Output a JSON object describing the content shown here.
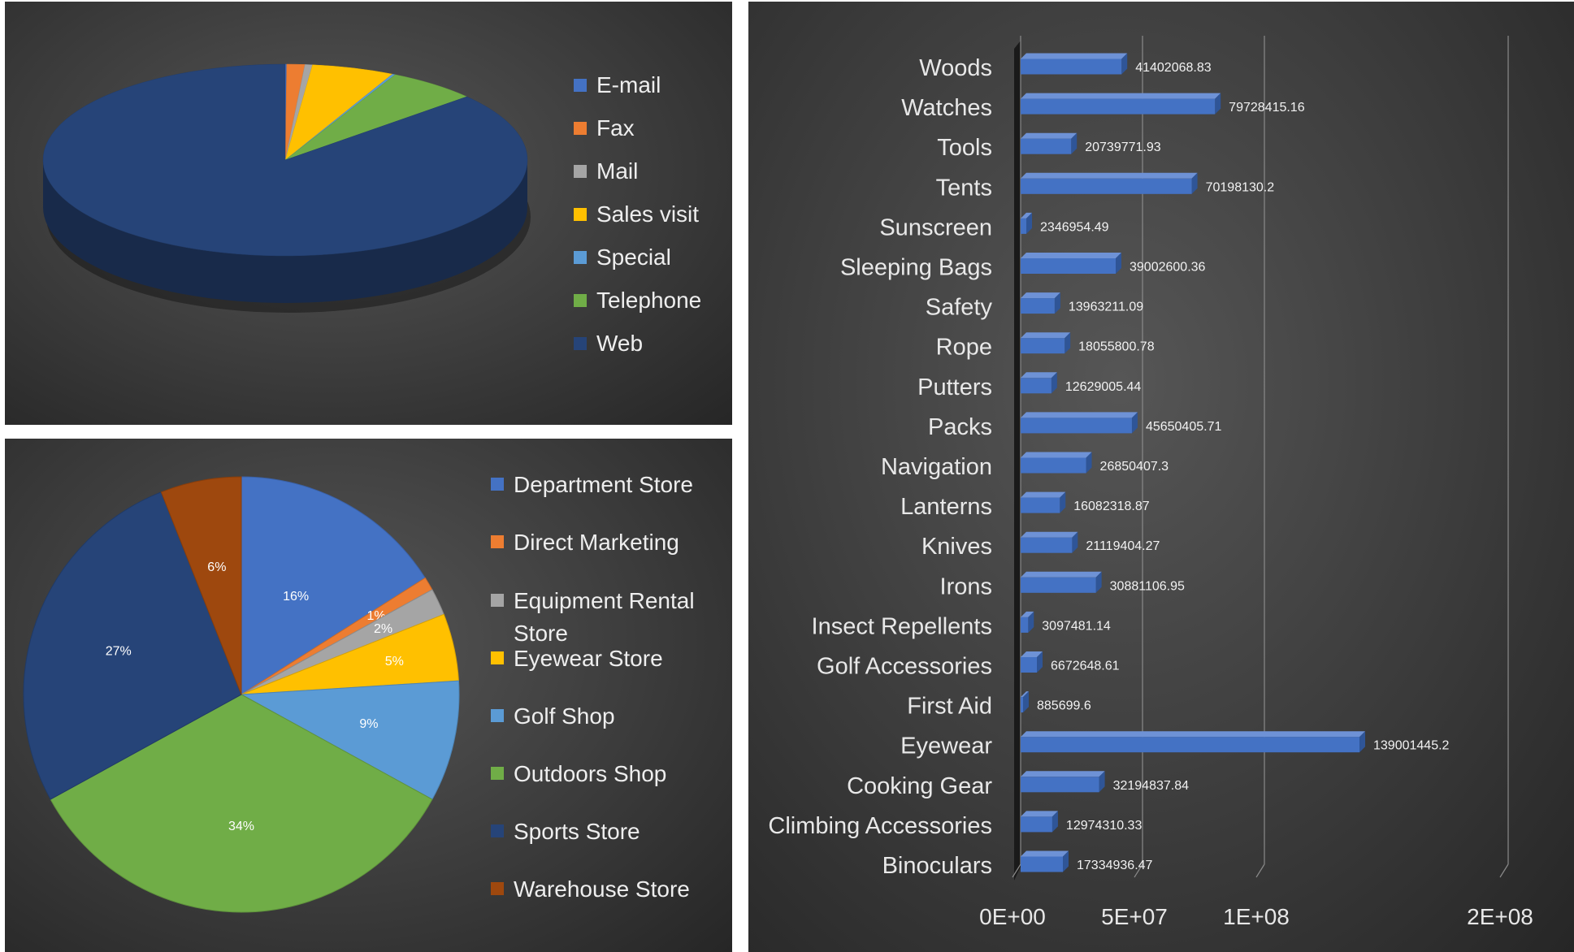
{
  "charts": {
    "channel_pie": {
      "type": "pie",
      "style": "3d",
      "legend_position": "right",
      "legend": [
        "E-mail",
        "Fax",
        "Mail",
        "Sales visit",
        "Special",
        "Telephone",
        "Web"
      ],
      "colors": [
        "#4472c4",
        "#ed7d31",
        "#a5a5a5",
        "#ffc000",
        "#5b9bd5",
        "#70ad47",
        "#264478"
      ],
      "values": [
        0.001,
        0.012,
        0.005,
        0.055,
        0.002,
        0.06,
        0.865
      ]
    },
    "retailer_pie": {
      "type": "pie",
      "legend_position": "right",
      "legend": [
        "Department Store",
        "Direct Marketing",
        "Equipment Rental Store",
        "Eyewear Store",
        "Golf Shop",
        "Outdoors Shop",
        "Sports Store",
        "Warehouse Store"
      ],
      "legend_lines": [
        [
          "Department Store"
        ],
        [
          "Direct Marketing"
        ],
        [
          "Equipment Rental",
          "Store"
        ],
        [
          "Eyewear Store"
        ],
        [
          "Golf Shop"
        ],
        [
          "Outdoors Shop"
        ],
        [
          "Sports Store"
        ],
        [
          "Warehouse Store"
        ]
      ],
      "colors": [
        "#4472c4",
        "#ed7d31",
        "#a5a5a5",
        "#ffc000",
        "#5b9bd5",
        "#70ad47",
        "#264478",
        "#9e480e"
      ],
      "values": [
        16,
        1,
        2,
        5,
        9,
        34,
        27,
        6
      ],
      "labels": [
        "16%",
        "1%",
        "2%",
        "5%",
        "9%",
        "34%",
        "27%",
        "6%"
      ]
    },
    "product_bar": {
      "type": "bar",
      "orientation": "horizontal",
      "style": "3d",
      "color": "#4472c4",
      "categories": [
        "Woods",
        "Watches",
        "Tools",
        "Tents",
        "Sunscreen",
        "Sleeping Bags",
        "Safety",
        "Rope",
        "Putters",
        "Packs",
        "Navigation",
        "Lanterns",
        "Knives",
        "Irons",
        "Insect Repellents",
        "Golf Accessories",
        "First Aid",
        "Eyewear",
        "Cooking Gear",
        "Climbing Accessories",
        "Binoculars"
      ],
      "values": [
        41402068.83,
        79728415.16,
        20739771.93,
        70198130.2,
        2346954.49,
        39002600.36,
        13963211.09,
        18055800.78,
        12629005.44,
        45650405.71,
        26850407.3,
        16082318.87,
        21119404.27,
        30881106.95,
        3097481.14,
        6672648.61,
        885699.6,
        139001445.2,
        32194837.84,
        12974310.33,
        17334936.47
      ],
      "value_labels": [
        "41402068.83",
        "79728415.16",
        "20739771.93",
        "70198130.2",
        "2346954.49",
        "39002600.36",
        "13963211.09",
        "18055800.78",
        "12629005.44",
        "45650405.71",
        "26850407.3",
        "16082318.87",
        "21119404.27",
        "30881106.95",
        "3097481.14",
        "6672648.61",
        "885699.6",
        "139001445.2",
        "32194837.84",
        "12974310.33",
        "17334936.47"
      ],
      "xlim": [
        0,
        200000000
      ],
      "x_ticks": [
        0,
        50000000,
        100000000,
        200000000
      ],
      "x_tick_labels": [
        "0E+00",
        "5E+07",
        "1E+08",
        "2E+08"
      ],
      "grid": true
    }
  }
}
